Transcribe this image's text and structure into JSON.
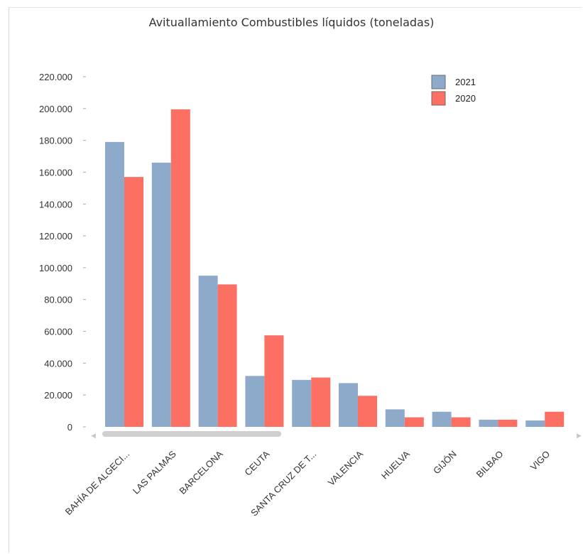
{
  "colors": {
    "2021": "#8eaacb",
    "2020": "#fb7062"
  },
  "chart_data": {
    "type": "bar",
    "title": "Avituallamiento Combustibles líquidos (toneladas)",
    "xlabel": "",
    "ylabel": "",
    "ylim": [
      0,
      220000
    ],
    "yticks": [
      "0",
      "20.000",
      "40.000",
      "60.000",
      "80.000",
      "100.000",
      "120.000",
      "140.000",
      "160.000",
      "180.000",
      "200.000",
      "220.000"
    ],
    "categories": [
      "BAHÍA DE ALGECI...",
      "LAS PALMAS",
      "BARCELONA",
      "CEUTA",
      "SANTA CRUZ DE T...",
      "VALENCIA",
      "HUELVA",
      "GIJÓN",
      "BILBAO",
      "VIGO"
    ],
    "series": [
      {
        "name": "2021",
        "color": "#8eaacb",
        "values": [
          179000,
          166000,
          95000,
          32000,
          29500,
          27500,
          11000,
          9500,
          4500,
          4000
        ]
      },
      {
        "name": "2020",
        "color": "#fb7062",
        "values": [
          157000,
          199500,
          89500,
          57500,
          31000,
          19500,
          6000,
          6000,
          4500,
          9500
        ]
      }
    ],
    "legend_position": "top-right",
    "grid": false
  },
  "scroll": {
    "left_arrow": "◀",
    "right_arrow": "▶"
  }
}
